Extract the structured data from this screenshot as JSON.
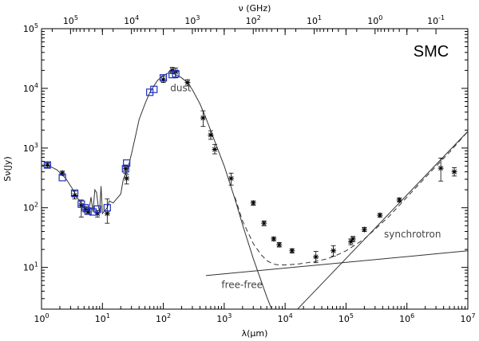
{
  "chart_data": {
    "type": "scatter",
    "title": "SMC",
    "xlabel": "λ(μm)",
    "ylabel": "Sν(Jy)",
    "top_xlabel": "ν (GHz)",
    "xscale": "log",
    "yscale": "log",
    "xlim": [
      1,
      10000000
    ],
    "ylim": [
      2,
      100000
    ],
    "x_ticks": [
      {
        "value": 1,
        "label": "10",
        "exp": "0"
      },
      {
        "value": 10,
        "label": "10",
        "exp": "1"
      },
      {
        "value": 100,
        "label": "10",
        "exp": "2"
      },
      {
        "value": 1000,
        "label": "10",
        "exp": "3"
      },
      {
        "value": 10000,
        "label": "10",
        "exp": "4"
      },
      {
        "value": 100000,
        "label": "10",
        "exp": "5"
      },
      {
        "value": 1000000,
        "label": "10",
        "exp": "6"
      },
      {
        "value": 10000000,
        "label": "10",
        "exp": "7"
      }
    ],
    "y_ticks": [
      {
        "value": 10,
        "label": "10",
        "exp": "1"
      },
      {
        "value": 100,
        "label": "10",
        "exp": "2"
      },
      {
        "value": 1000,
        "label": "10",
        "exp": "3"
      },
      {
        "value": 10000,
        "label": "10",
        "exp": "4"
      },
      {
        "value": 100000,
        "label": "10",
        "exp": "5"
      }
    ],
    "top_ticks": [
      {
        "value": 100000,
        "label": "10",
        "exp": "5"
      },
      {
        "value": 10000,
        "label": "10",
        "exp": "4"
      },
      {
        "value": 1000,
        "label": "10",
        "exp": "3"
      },
      {
        "value": 100,
        "label": "10",
        "exp": "2"
      },
      {
        "value": 10,
        "label": "10",
        "exp": "1"
      },
      {
        "value": 1,
        "label": "10",
        "exp": "0"
      },
      {
        "value": 0.1,
        "label": "10",
        "exp": "-1"
      }
    ],
    "annotations": {
      "dust": {
        "text": "dust",
        "x": 130,
        "y": 9000
      },
      "free_free": {
        "text": "free-free",
        "x": 900,
        "y": 4.5
      },
      "synchrotron": {
        "text": "synchrotron",
        "x": 420000,
        "y": 32
      }
    },
    "squares": [
      [
        1.25,
        520
      ],
      [
        2.2,
        320
      ],
      [
        3.5,
        175
      ],
      [
        4.5,
        115
      ],
      [
        5.2,
        100
      ],
      [
        5.8,
        88
      ],
      [
        7.0,
        85
      ],
      [
        8.3,
        95
      ],
      [
        12,
        100
      ],
      [
        24,
        450
      ],
      [
        25,
        560
      ],
      [
        60,
        8600
      ],
      [
        70,
        9600
      ],
      [
        100,
        15000
      ],
      [
        140,
        17000
      ],
      [
        160,
        17500
      ]
    ],
    "stars": [
      {
        "x": 1.25,
        "y": 520,
        "err": [
          470,
          570
        ]
      },
      {
        "x": 2.2,
        "y": 380,
        "err": [
          350,
          410
        ]
      },
      {
        "x": 3.5,
        "y": 160,
        "err": [
          140,
          190
        ]
      },
      {
        "x": 4.5,
        "y": 110,
        "err": [
          70,
          135
        ]
      },
      {
        "x": 5.2,
        "y": 95,
        "err": [
          85,
          105
        ]
      },
      {
        "x": 5.8,
        "y": 85,
        "err": [
          77,
          95
        ]
      },
      {
        "x": 8.3,
        "y": 80,
        "err": [
          70,
          90
        ]
      },
      {
        "x": 12,
        "y": 80,
        "err": [
          55,
          140
        ]
      },
      {
        "x": 25,
        "y": 310,
        "err": [
          250,
          360
        ]
      },
      {
        "x": 24,
        "y": 450,
        "err": [
          380,
          520
        ]
      },
      {
        "x": 100,
        "y": 14000,
        "err": [
          12500,
          16000
        ]
      },
      {
        "x": 140,
        "y": 20000,
        "err": [
          18000,
          22500
        ]
      },
      {
        "x": 160,
        "y": 19000,
        "err": [
          15000,
          22000
        ]
      },
      {
        "x": 250,
        "y": 12500,
        "err": [
          11000,
          14000
        ]
      },
      {
        "x": 450,
        "y": 3200,
        "err": [
          2300,
          4200
        ]
      },
      {
        "x": 600,
        "y": 1650,
        "err": [
          1400,
          1950
        ]
      },
      {
        "x": 700,
        "y": 950,
        "err": [
          800,
          1150
        ]
      },
      {
        "x": 1300,
        "y": 310,
        "err": [
          240,
          380
        ]
      },
      {
        "x": 3000,
        "y": 120,
        "err": [
          110,
          130
        ]
      },
      {
        "x": 4500,
        "y": 55,
        "err": [
          50,
          60
        ]
      },
      {
        "x": 6500,
        "y": 30,
        "err": [
          28,
          32
        ]
      },
      {
        "x": 8000,
        "y": 24,
        "err": [
          22,
          26
        ]
      },
      {
        "x": 13000,
        "y": 19,
        "err": [
          17.5,
          20.5
        ]
      },
      {
        "x": 32000,
        "y": 15,
        "err": [
          12,
          18.5
        ]
      },
      {
        "x": 62000,
        "y": 19,
        "err": [
          15.5,
          23
        ]
      },
      {
        "x": 120000,
        "y": 27,
        "err": [
          24,
          30
        ]
      },
      {
        "x": 130000,
        "y": 30,
        "err": [
          27,
          33
        ]
      },
      {
        "x": 200000,
        "y": 43,
        "err": [
          40,
          47
        ]
      },
      {
        "x": 360000,
        "y": 75,
        "err": [
          70,
          80
        ]
      },
      {
        "x": 750000,
        "y": 135,
        "err": [
          125,
          145
        ]
      },
      {
        "x": 3600000,
        "y": 460,
        "err": [
          280,
          680
        ]
      },
      {
        "x": 6000000,
        "y": 400,
        "err": [
          340,
          470
        ]
      }
    ],
    "series": [
      {
        "style": "solid",
        "x": [
          1,
          1.3,
          1.8,
          2.5,
          3.2,
          4,
          5,
          6,
          6.5,
          7,
          7.5,
          8,
          8.5,
          9,
          9.5,
          10,
          11,
          12,
          13,
          15,
          17,
          20,
          22,
          25,
          27,
          30,
          35,
          40,
          50,
          60,
          70,
          80,
          100,
          120,
          150,
          180,
          200,
          250,
          300,
          400,
          500,
          700,
          1000,
          1500,
          2000,
          3000,
          5000,
          6000
        ],
        "y": [
          520,
          510,
          430,
          310,
          210,
          140,
          100,
          90,
          150,
          85,
          200,
          180,
          110,
          85,
          230,
          80,
          90,
          100,
          130,
          120,
          140,
          170,
          300,
          400,
          520,
          800,
          1600,
          3000,
          5500,
          8500,
          11000,
          13500,
          16500,
          18000,
          17500,
          16000,
          15000,
          12500,
          9500,
          5500,
          3200,
          1300,
          500,
          140,
          52,
          14,
          3.2,
          2
        ]
      },
      {
        "style": "dashed",
        "x": [
          1500,
          2000,
          3000,
          4000,
          5000,
          6000,
          7000,
          8000,
          10000,
          15000,
          20000,
          30000,
          50000,
          70000,
          100000,
          200000,
          500000,
          1000000,
          2000000,
          5000000,
          10000000
        ],
        "y": [
          150,
          60,
          25,
          16.5,
          13,
          11.8,
          11.2,
          11,
          11,
          11.3,
          11.7,
          12.5,
          14,
          16,
          19,
          30,
          70,
          150,
          320,
          850,
          1900
        ]
      },
      {
        "style": "solid",
        "x": [
          500,
          10000000
        ],
        "y": [
          7.3,
          19
        ]
      },
      {
        "style": "solid",
        "x": [
          16000,
          10000000
        ],
        "y": [
          2,
          1900
        ]
      }
    ]
  }
}
